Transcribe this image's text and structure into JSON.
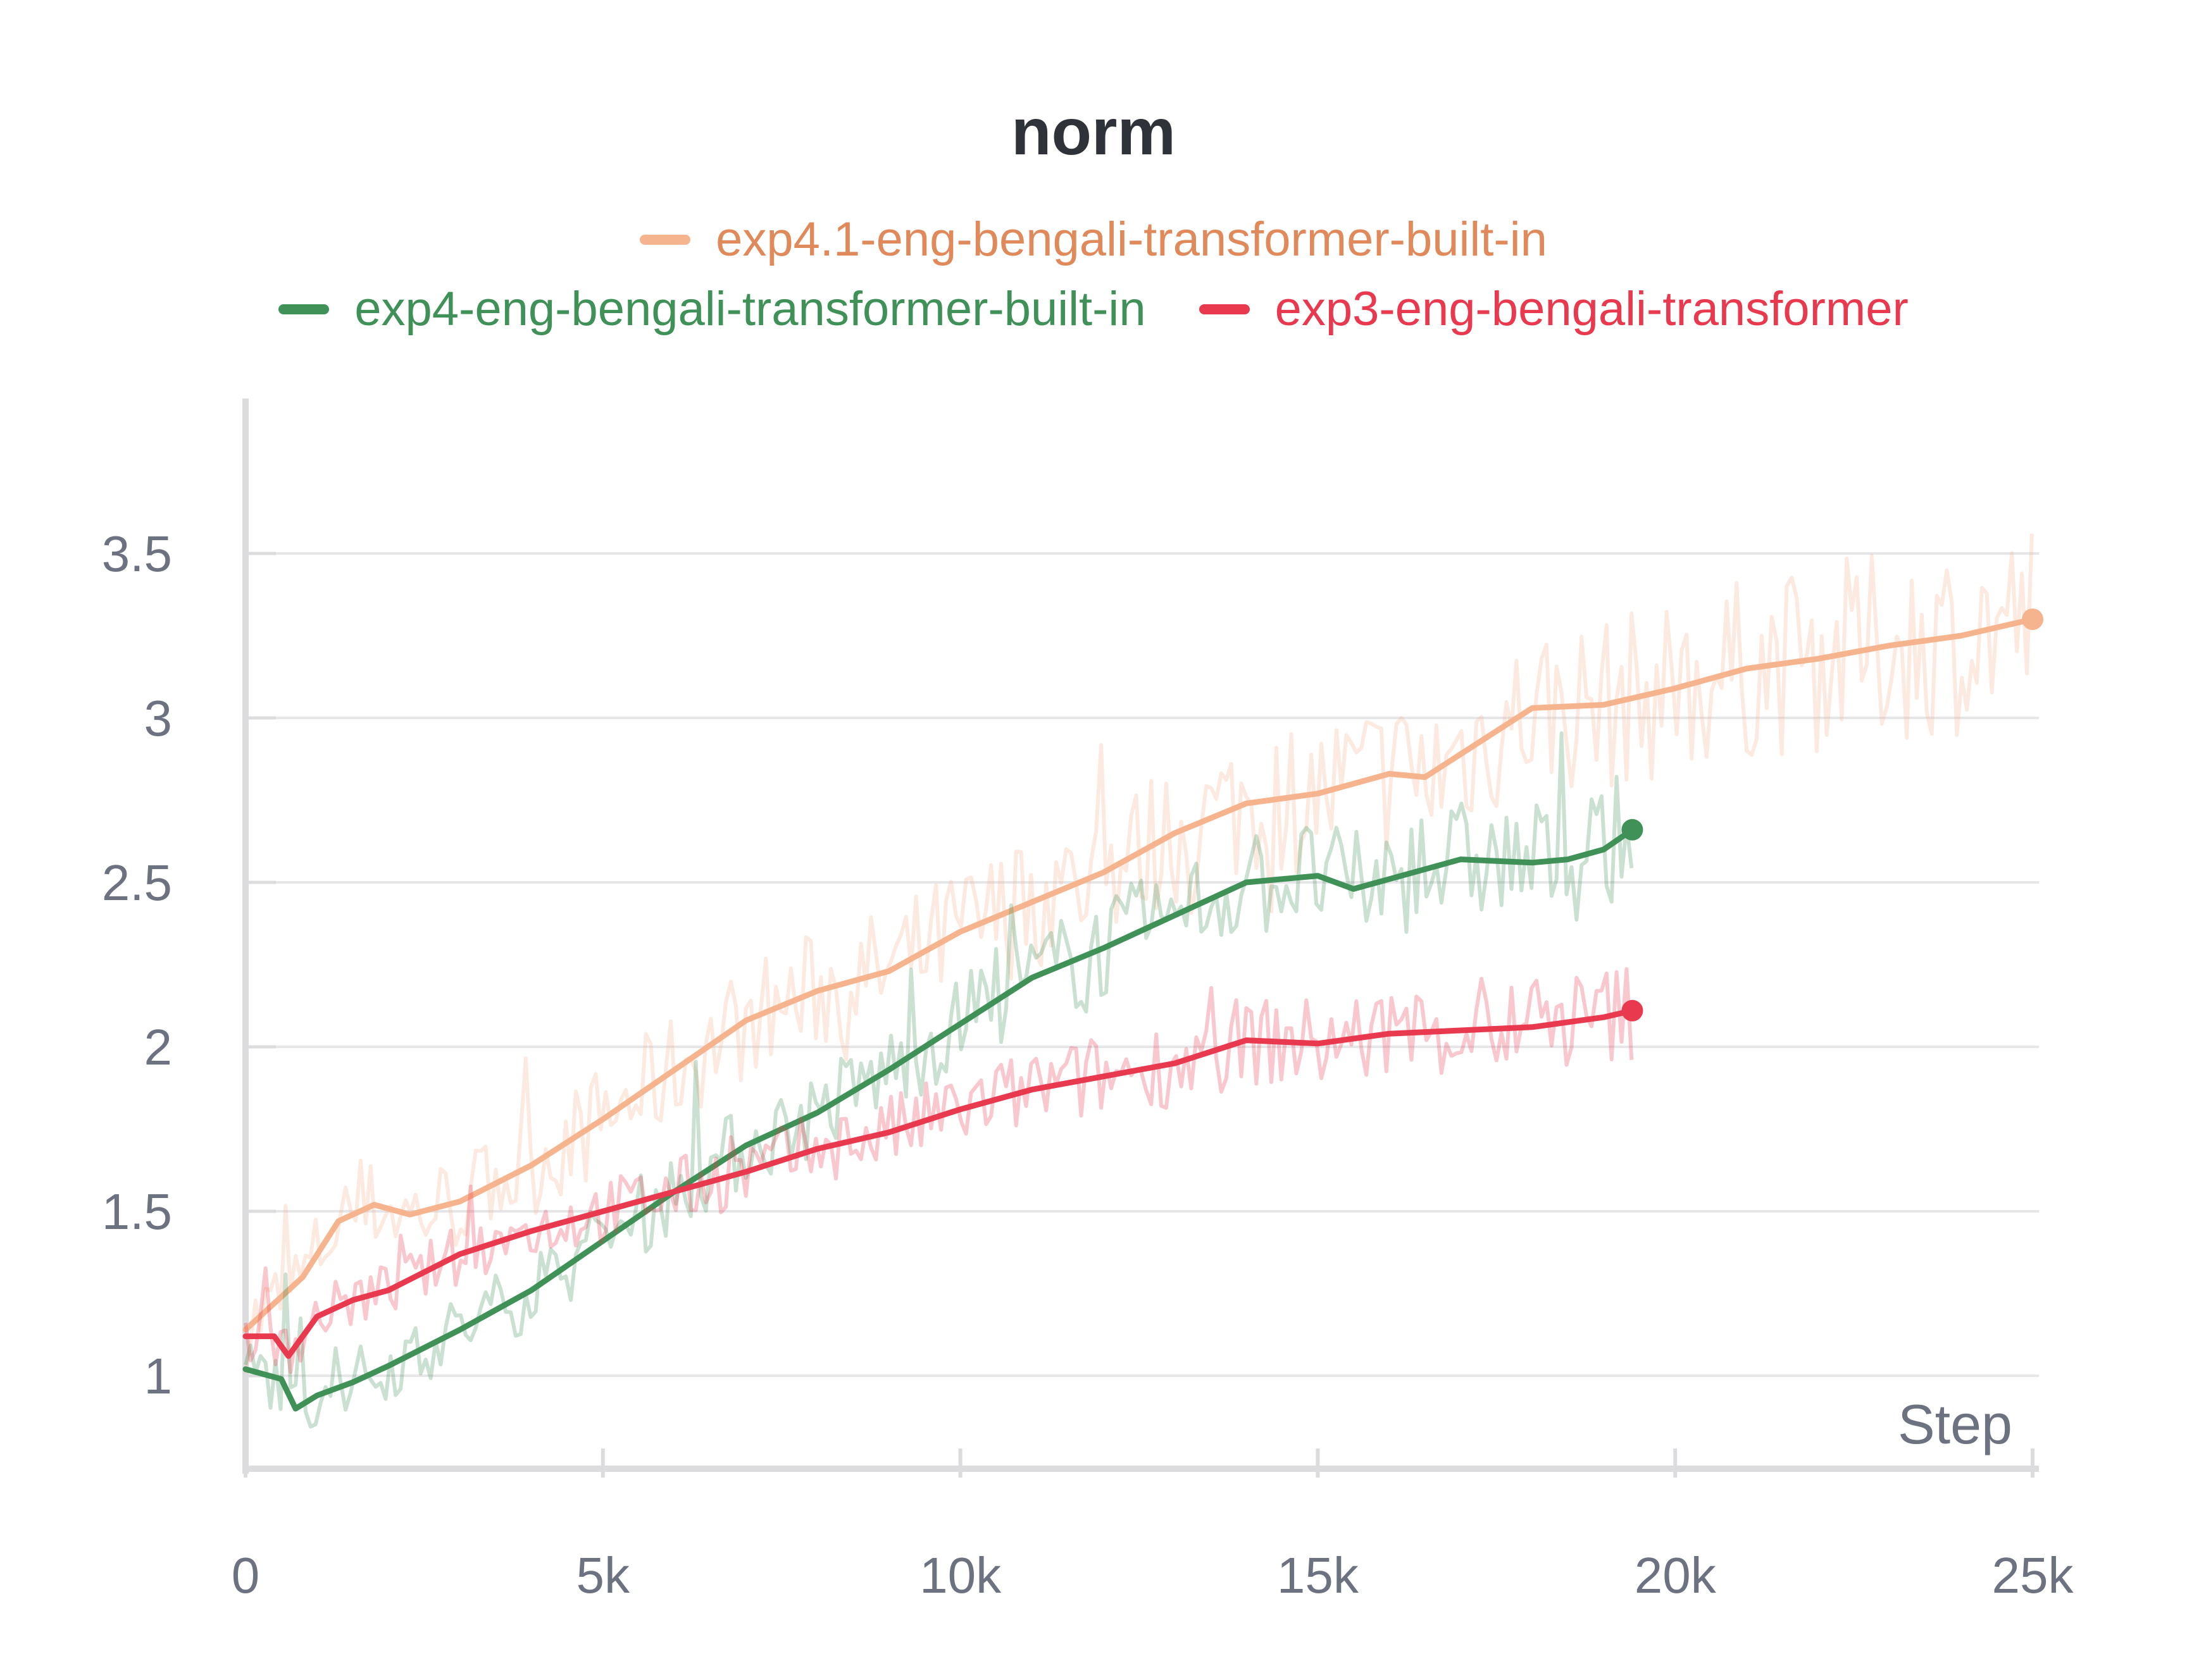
{
  "chart_data": {
    "type": "line",
    "title": "norm",
    "xlabel": "Step",
    "ylabel": "",
    "xlim": [
      0,
      25000
    ],
    "ylim": [
      0.75,
      3.75
    ],
    "x_ticks": [
      0,
      5000,
      10000,
      15000,
      20000,
      25000
    ],
    "x_tick_labels": [
      "0",
      "5k",
      "10k",
      "15k",
      "20k",
      "25k"
    ],
    "y_ticks": [
      1,
      1.5,
      2,
      2.5,
      3,
      3.5
    ],
    "y_tick_labels": [
      "1",
      "1.5",
      "2",
      "2.5",
      "3",
      "3.5"
    ],
    "grid": true,
    "legend_position": "top",
    "series": [
      {
        "name": "exp4.1-eng-bengali-transformer-built-in",
        "color": "#f6b48e",
        "label_color": "#e0895a",
        "x": [
          0,
          300,
          800,
          1300,
          1800,
          2300,
          3000,
          4000,
          5000,
          6000,
          7000,
          8000,
          9000,
          10000,
          11000,
          12000,
          13000,
          14000,
          15000,
          16000,
          16500,
          17000,
          18000,
          19000,
          20000,
          21000,
          22000,
          23000,
          24000,
          25000
        ],
        "y": [
          1.14,
          1.2,
          1.3,
          1.47,
          1.52,
          1.49,
          1.53,
          1.64,
          1.78,
          1.93,
          2.08,
          2.17,
          2.23,
          2.35,
          2.44,
          2.53,
          2.65,
          2.74,
          2.77,
          2.83,
          2.82,
          2.89,
          3.03,
          3.04,
          3.09,
          3.15,
          3.18,
          3.22,
          3.25,
          3.3
        ]
      },
      {
        "name": "exp4-eng-bengali-transformer-built-in",
        "color": "#3f9158",
        "label_color": "#3f9158",
        "x": [
          0,
          500,
          700,
          1000,
          1500,
          2000,
          3000,
          4000,
          5000,
          6000,
          7000,
          8000,
          9000,
          10000,
          11000,
          12000,
          13000,
          14000,
          15000,
          15500,
          16000,
          17000,
          18000,
          18500,
          19000,
          19400
        ],
        "y": [
          1.02,
          0.99,
          0.9,
          0.94,
          0.98,
          1.03,
          1.14,
          1.26,
          1.41,
          1.56,
          1.7,
          1.8,
          1.93,
          2.07,
          2.21,
          2.3,
          2.4,
          2.5,
          2.52,
          2.48,
          2.51,
          2.57,
          2.56,
          2.57,
          2.6,
          2.66
        ]
      },
      {
        "name": "exp3-eng-bengali-transformer",
        "color": "#e8394f",
        "label_color": "#e8394f",
        "x": [
          0,
          400,
          600,
          1000,
          1500,
          2000,
          3000,
          4000,
          5000,
          6000,
          7000,
          8000,
          9000,
          10000,
          11000,
          12000,
          13000,
          14000,
          15000,
          16000,
          17000,
          18000,
          19000,
          19400
        ],
        "y": [
          1.12,
          1.12,
          1.06,
          1.18,
          1.23,
          1.26,
          1.37,
          1.44,
          1.5,
          1.56,
          1.62,
          1.69,
          1.74,
          1.81,
          1.87,
          1.91,
          1.95,
          2.02,
          2.01,
          2.04,
          2.05,
          2.06,
          2.09,
          2.11
        ]
      }
    ]
  }
}
